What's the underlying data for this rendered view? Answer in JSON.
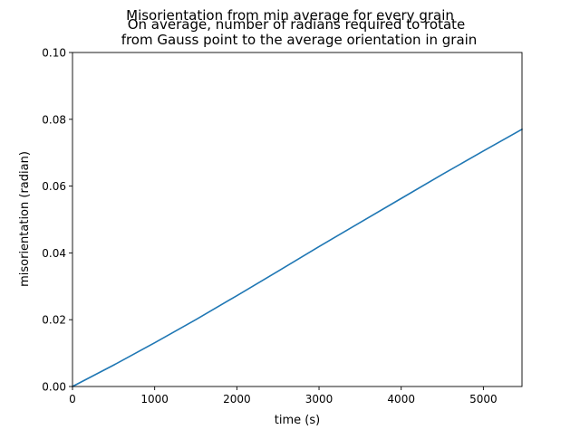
{
  "chart_data": {
    "type": "line",
    "title_lines": [
      "Misorientation from min average for every grain",
      "On average, number of radians required to rotate",
      "from Gauss point to the average orientation in grain"
    ],
    "xlabel": "time (s)",
    "ylabel": "misorientation (radian)",
    "xlim": [
      0,
      5470
    ],
    "ylim": [
      0.0,
      0.1
    ],
    "x_ticks": [
      0,
      1000,
      2000,
      3000,
      4000,
      5000
    ],
    "x_tick_labels": [
      "0",
      "1000",
      "2000",
      "3000",
      "4000",
      "5000"
    ],
    "y_ticks": [
      0.0,
      0.02,
      0.04,
      0.06,
      0.08,
      0.1
    ],
    "y_tick_labels": [
      "0.00",
      "0.02",
      "0.04",
      "0.06",
      "0.08",
      "0.10"
    ],
    "grid": false,
    "series": [
      {
        "color": "#1f77b4",
        "x": [
          0,
          500,
          1000,
          1500,
          2000,
          2500,
          3000,
          3500,
          4000,
          4500,
          5000,
          5470
        ],
        "y": [
          0.0,
          0.0064,
          0.0131,
          0.02,
          0.0272,
          0.0345,
          0.0419,
          0.0491,
          0.0563,
          0.0635,
          0.0705,
          0.077
        ]
      }
    ]
  }
}
